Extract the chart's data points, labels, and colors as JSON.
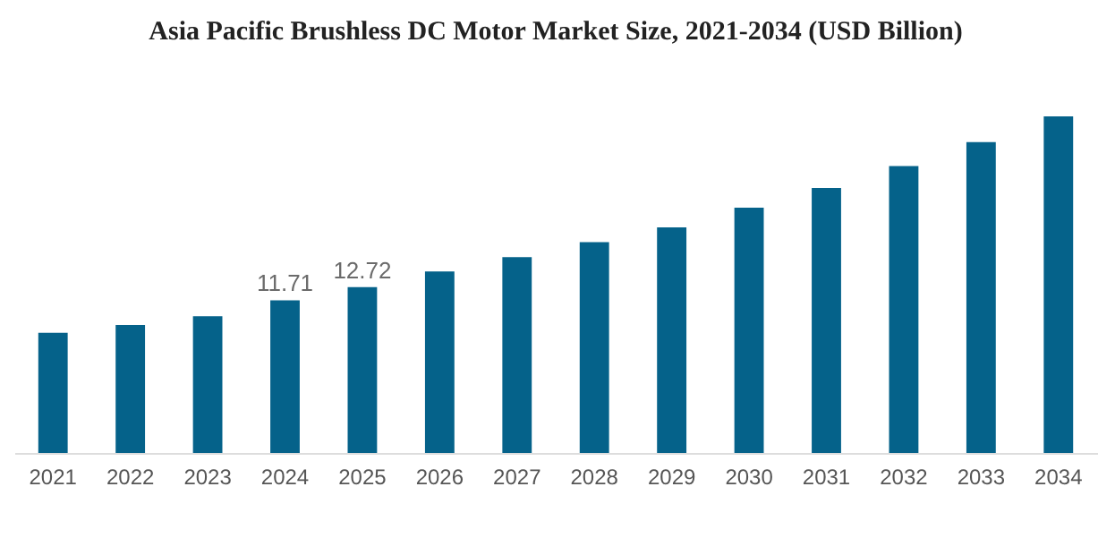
{
  "chart_data": {
    "type": "bar",
    "title": "Asia Pacific Brushless DC Motor Market Size, 2021-2034 (USD Billion)",
    "categories": [
      "2021",
      "2022",
      "2023",
      "2024",
      "2025",
      "2026",
      "2027",
      "2028",
      "2029",
      "2030",
      "2031",
      "2032",
      "2033",
      "2034"
    ],
    "values": [
      9.22,
      9.81,
      10.49,
      11.71,
      12.72,
      13.92,
      15.02,
      16.17,
      17.3,
      18.81,
      20.32,
      22.0,
      23.84,
      25.8
    ],
    "value_labels": [
      null,
      null,
      null,
      "11.71",
      "12.72",
      null,
      null,
      null,
      null,
      null,
      null,
      null,
      null,
      null
    ],
    "color": "#05628a",
    "grid": false,
    "tick_labels": "x"
  }
}
